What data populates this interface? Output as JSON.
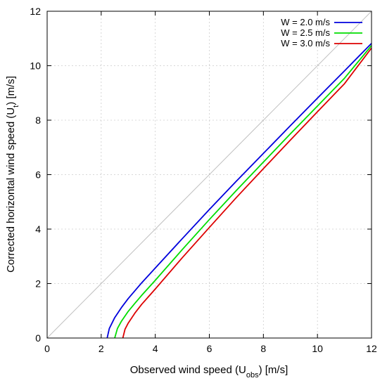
{
  "chart_data": {
    "type": "line",
    "xlabel_main": "Observed wind speed (U",
    "xlabel_sub": "obs",
    "xlabel_end": ") [m/s]",
    "ylabel_main": "Corrected horizontal wind speed (U",
    "ylabel_sub": "t",
    "ylabel_end": ") [m/s]",
    "xlim": [
      0,
      12
    ],
    "ylim": [
      0,
      12
    ],
    "x_ticks": [
      0,
      2,
      4,
      6,
      8,
      10,
      12
    ],
    "y_ticks": [
      0,
      2,
      4,
      6,
      8,
      10,
      12
    ],
    "x_tick_labels": [
      "0",
      "2",
      "4",
      "6",
      "8",
      "10",
      "12"
    ],
    "y_tick_labels": [
      "0",
      "2",
      "4",
      "6",
      "8",
      "10",
      "12"
    ],
    "grid": true,
    "legend_position": "top-right",
    "reference_line": {
      "x": [
        0,
        12
      ],
      "y": [
        0,
        12
      ],
      "color": "#c0c0c0"
    },
    "series": [
      {
        "name": "W = 2.0 m/s",
        "color": "#0000dd",
        "x": [
          2.22,
          2.3,
          2.5,
          2.75,
          3.0,
          3.5,
          4.0,
          5.0,
          6.0,
          7.0,
          8.0,
          9.0,
          10.0,
          11.0,
          12.0
        ],
        "y": [
          0.0,
          0.35,
          0.75,
          1.12,
          1.45,
          2.03,
          2.57,
          3.65,
          4.72,
          5.76,
          6.78,
          7.8,
          8.81,
          9.81,
          10.82
        ]
      },
      {
        "name": "W = 2.5 m/s",
        "color": "#00dd00",
        "x": [
          2.5,
          2.6,
          2.75,
          3.0,
          3.25,
          3.5,
          4.0,
          5.0,
          6.0,
          7.0,
          8.0,
          9.0,
          10.0,
          11.0,
          12.0
        ],
        "y": [
          0.0,
          0.35,
          0.62,
          0.98,
          1.28,
          1.57,
          2.12,
          3.25,
          4.35,
          5.42,
          6.46,
          7.5,
          8.52,
          9.54,
          10.74
        ]
      },
      {
        "name": "W = 3.0 m/s",
        "color": "#dd0000",
        "x": [
          2.8,
          2.88,
          3.0,
          3.25,
          3.5,
          3.75,
          4.0,
          5.0,
          6.0,
          7.0,
          8.0,
          9.0,
          10.0,
          11.0,
          12.0
        ],
        "y": [
          0.0,
          0.32,
          0.55,
          0.92,
          1.24,
          1.52,
          1.8,
          2.95,
          4.06,
          5.16,
          6.22,
          7.27,
          8.31,
          9.34,
          10.65
        ]
      }
    ]
  }
}
